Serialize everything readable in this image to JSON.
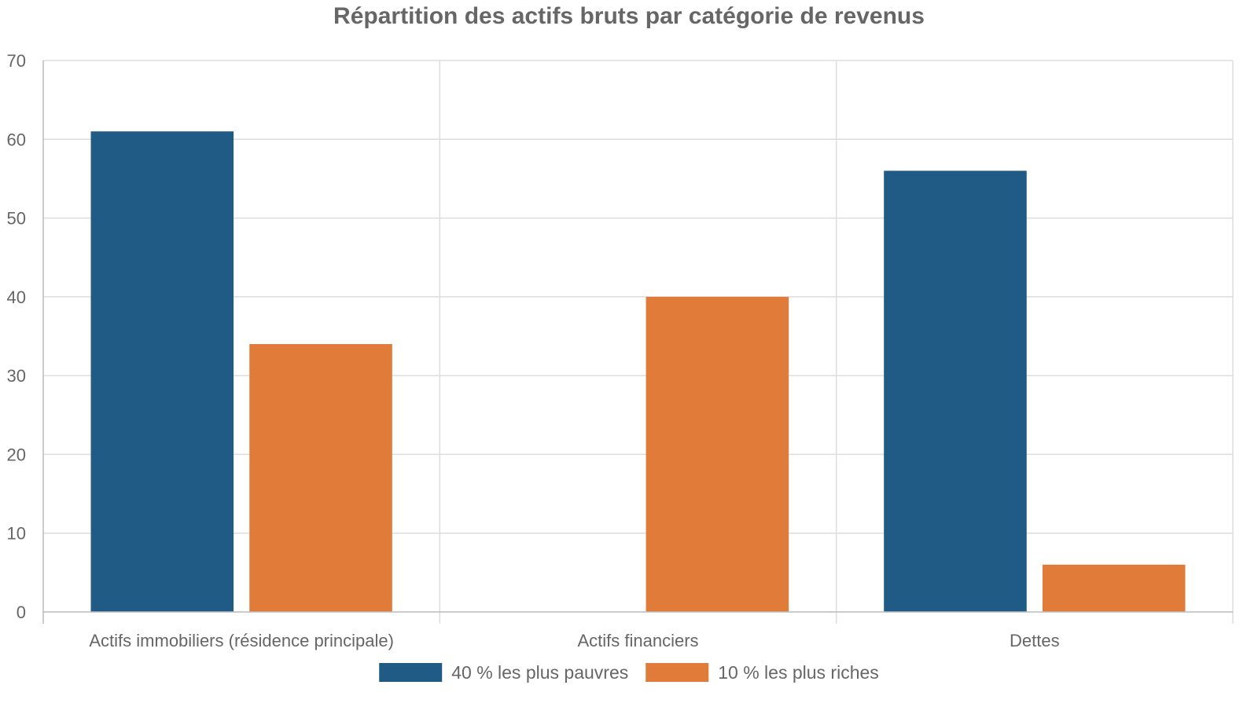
{
  "chart_data": {
    "type": "bar",
    "title": "Répartition des actifs bruts par catégorie de revenus",
    "xlabel": "",
    "ylabel": "",
    "categories": [
      "Actifs immobiliers (résidence principale)",
      "Actifs financiers",
      "Dettes"
    ],
    "series": [
      {
        "name": "40 % les plus pauvres",
        "color": "#1f5b84",
        "values": [
          61,
          0,
          56
        ]
      },
      {
        "name": "10 % les plus riches",
        "color": "#e07b39",
        "values": [
          34,
          40,
          6
        ]
      }
    ],
    "ylim": [
      0,
      70
    ],
    "yticks": [
      0,
      10,
      20,
      30,
      40,
      50,
      60,
      70
    ],
    "grid": true,
    "legend_position": "bottom"
  }
}
